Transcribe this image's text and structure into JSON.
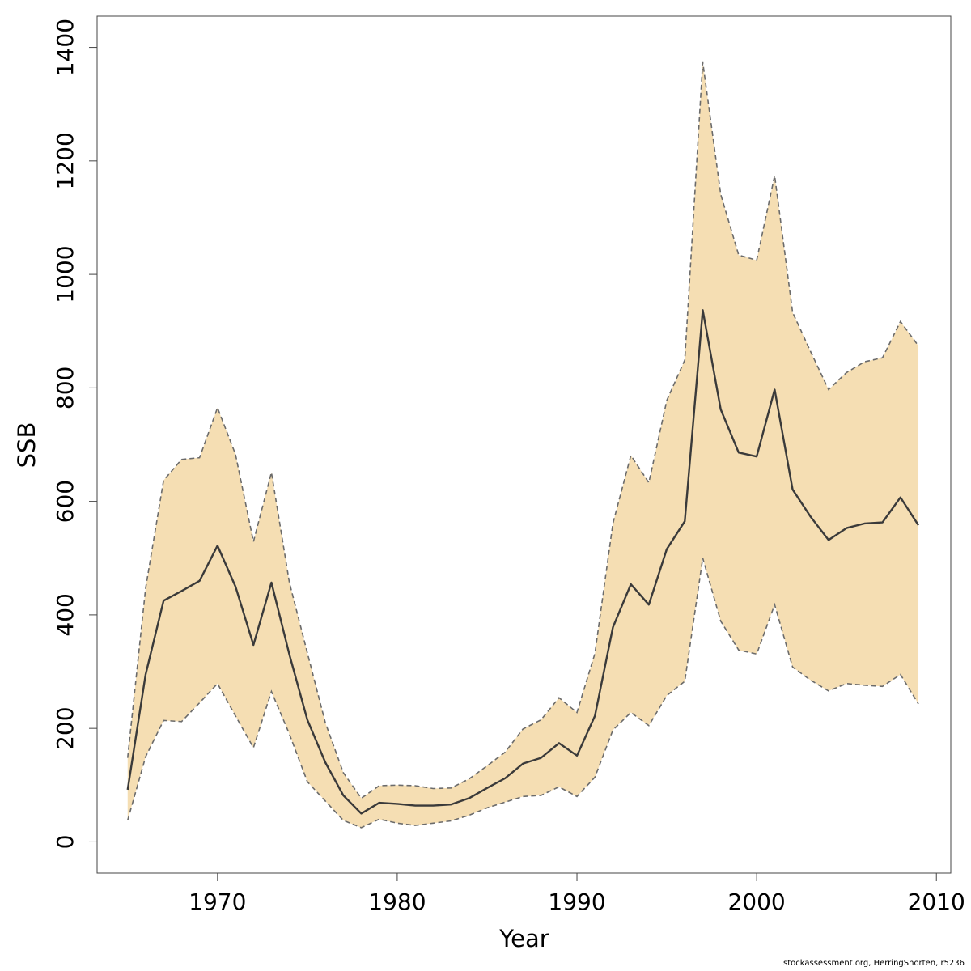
{
  "chart_data": {
    "type": "area",
    "title": "",
    "xlabel": "Year",
    "ylabel": "SSB",
    "xlim": [
      1963.3,
      2010.8
    ],
    "ylim": [
      -55,
      1455
    ],
    "x_ticks": [
      1970,
      1980,
      1990,
      2000,
      2010
    ],
    "y_ticks": [
      0,
      200,
      400,
      600,
      800,
      1000,
      1200,
      1400
    ],
    "x": [
      1965,
      1966,
      1967,
      1968,
      1969,
      1970,
      1971,
      1972,
      1973,
      1974,
      1975,
      1976,
      1977,
      1978,
      1979,
      1980,
      1981,
      1982,
      1983,
      1984,
      1985,
      1986,
      1987,
      1988,
      1989,
      1990,
      1991,
      1992,
      1993,
      1994,
      1995,
      1996,
      1997,
      1998,
      1999,
      2000,
      2001,
      2002,
      2003,
      2004,
      2005,
      2006,
      2007,
      2008,
      2009
    ],
    "series": [
      {
        "values": [
          92,
          295,
          425,
          442,
          460,
          522,
          450,
          347,
          457,
          330,
          215,
          140,
          82,
          50,
          69,
          67,
          64,
          64,
          66,
          77,
          95,
          112,
          138,
          148,
          174,
          152,
          222,
          378,
          454,
          418,
          516,
          565,
          937,
          762,
          686,
          679,
          797,
          621,
          573,
          532,
          553,
          561,
          563,
          607,
          558
        ]
      }
    ],
    "band": {
      "lower": [
        38,
        150,
        214,
        212,
        245,
        279,
        222,
        166,
        265,
        190,
        106,
        72,
        38,
        25,
        40,
        33,
        29,
        33,
        37,
        47,
        60,
        70,
        80,
        82,
        97,
        80,
        114,
        197,
        228,
        205,
        258,
        283,
        500,
        389,
        338,
        331,
        418,
        308,
        285,
        266,
        279,
        276,
        274,
        295,
        243
      ],
      "upper": [
        148,
        447,
        637,
        674,
        677,
        765,
        683,
        529,
        651,
        457,
        333,
        210,
        122,
        77,
        99,
        100,
        99,
        94,
        95,
        111,
        134,
        158,
        199,
        215,
        254,
        228,
        332,
        561,
        681,
        633,
        778,
        849,
        1374,
        1141,
        1034,
        1025,
        1174,
        933,
        864,
        797,
        827,
        846,
        853,
        917,
        874
      ]
    },
    "colors": {
      "band_fill": "#f5deb3",
      "band_edge": "#6b6b6b",
      "line": "#3a3a3a",
      "axis": "#444444"
    },
    "grid": false,
    "legend": "none"
  },
  "footnote": "stockassessment.org, HerringShorten, r5236"
}
